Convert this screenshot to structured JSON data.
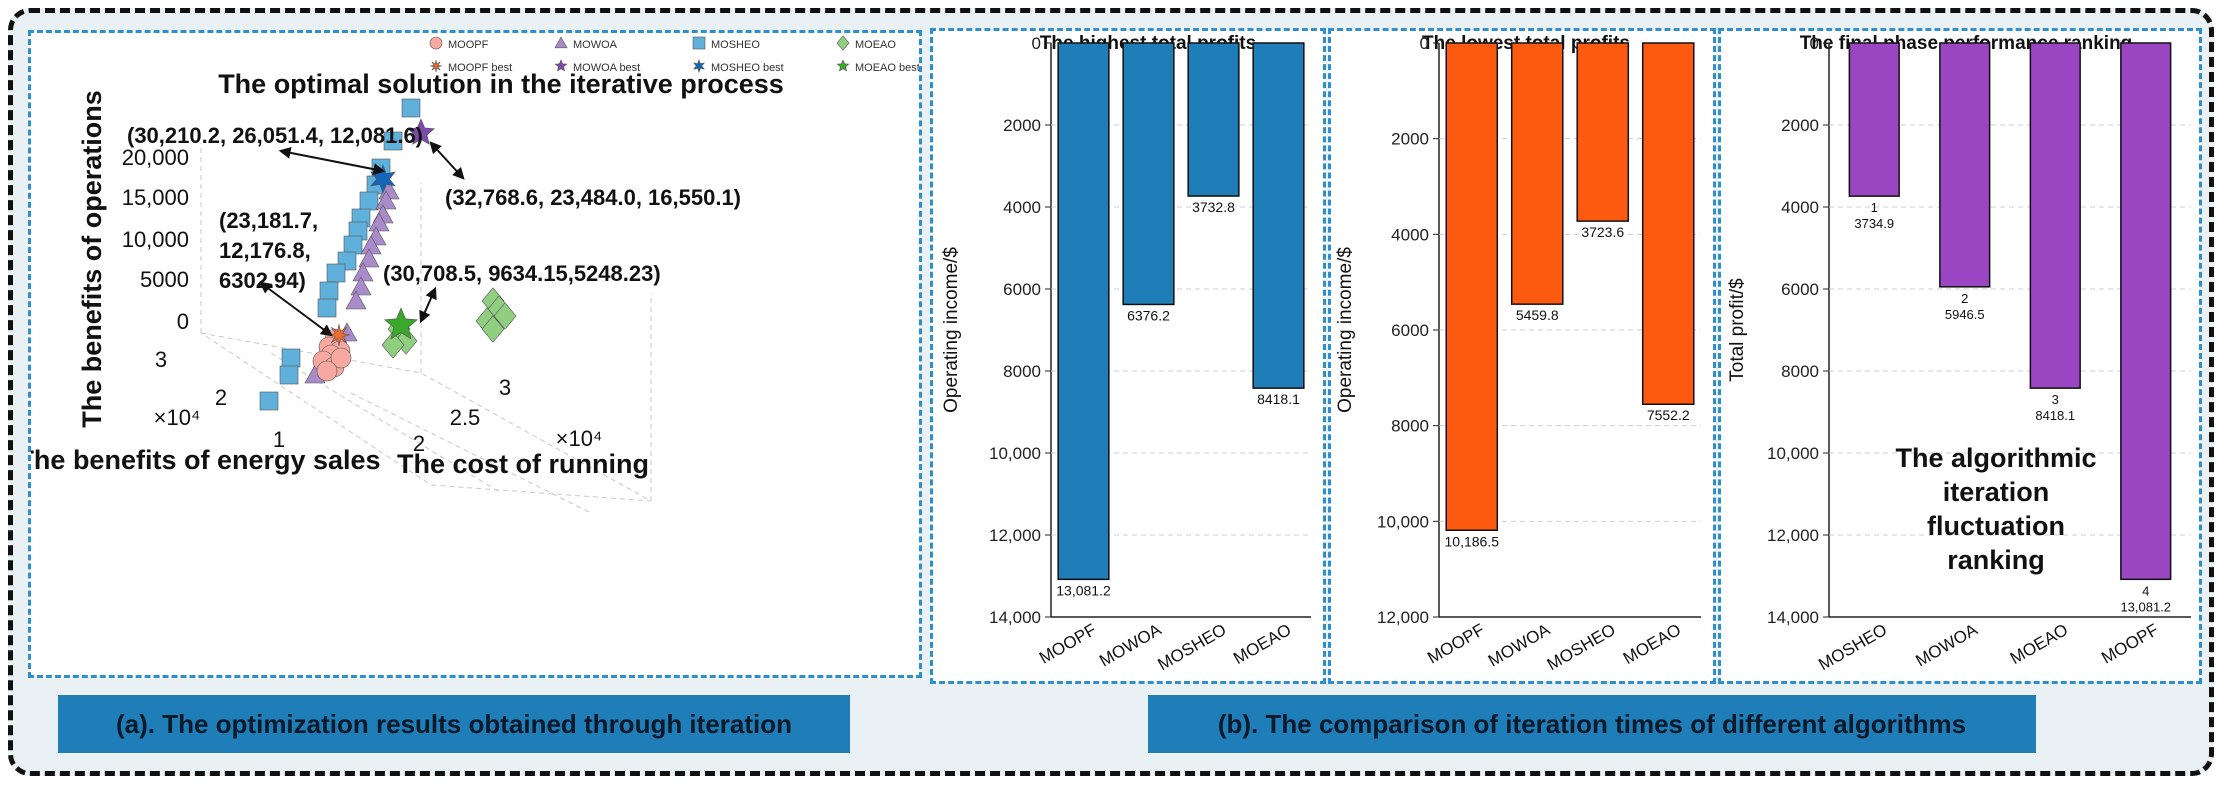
{
  "captions": {
    "a": "(a). The optimization results obtained through iteration",
    "b": "(b). The comparison of iteration times of different algorithms"
  },
  "colors": {
    "MOOPF": "#f7a8a0",
    "MOOPF_best": "#f26a2e",
    "MOWOA": "#a98bc9",
    "MOWOA_best": "#7b4ba8",
    "MOSHEO": "#5fb0da",
    "MOSHEO_best": "#1565b8",
    "MOEAO": "#8fcf7f",
    "MOEAO_best": "#3aa82a",
    "bar_highest": "#1f7db8",
    "bar_lowest": "#fb5a10",
    "bar_ranking": "#9a45c2"
  },
  "chart_data": [
    {
      "type": "scatter",
      "title": "The optimal solution in the iterative process",
      "zlabel": "The benefits of operations",
      "ylabel": "The benefits of energy sales",
      "xlabel": "The cost of running",
      "z_ticks": [
        "0",
        "5000",
        "10,000",
        "15,000",
        "20,000"
      ],
      "y_ticks": [
        "1",
        "2",
        "3"
      ],
      "y_multiplier": "×10⁴",
      "x_ticks": [
        "2",
        "2.5",
        "3"
      ],
      "x_multiplier": "×10⁴",
      "legend": [
        {
          "name": "MOOPF",
          "marker": "circle",
          "color_key": "MOOPF"
        },
        {
          "name": "MOWOA",
          "marker": "triangle",
          "color_key": "MOWOA"
        },
        {
          "name": "MOSHEO",
          "marker": "square",
          "color_key": "MOSHEO"
        },
        {
          "name": "MOEAO",
          "marker": "diamond",
          "color_key": "MOEAO"
        },
        {
          "name": "MOOPF best",
          "marker": "asterisk",
          "color_key": "MOOPF_best"
        },
        {
          "name": "MOWOA best",
          "marker": "star5",
          "color_key": "MOWOA_best"
        },
        {
          "name": "MOSHEO best",
          "marker": "star6",
          "color_key": "MOSHEO_best"
        },
        {
          "name": "MOEAO best",
          "marker": "star5",
          "color_key": "MOEAO_best"
        }
      ],
      "best_solutions": [
        {
          "series": "MOSHEO",
          "cost": 30210.2,
          "energy_sales": 26051.4,
          "operations": 12081.6,
          "label_lines": [
            "(30,210.2, 26,051.4, 12,081.6)"
          ]
        },
        {
          "series": "MOWOA",
          "cost": 32768.6,
          "energy_sales": 23484.0,
          "operations": 16550.1,
          "label_lines": [
            "(32,768.6, 23,484.0, 16,550.1)"
          ]
        },
        {
          "series": "MOOPF",
          "cost": 23181.7,
          "energy_sales": 12176.8,
          "operations": 6302.94,
          "label_lines": [
            "(23,181.7,",
            "12,176.8,",
            "6302.94)"
          ]
        },
        {
          "series": "MOEAO",
          "cost": 30708.5,
          "energy_sales": 9634.15,
          "operations": 5248.23,
          "label_lines": [
            "(30,708.5, 9634.15,5248.23)"
          ]
        }
      ]
    },
    {
      "type": "bar",
      "title": "The highest total profits",
      "ylabel": "Operating income/$",
      "y_inverted": true,
      "ylim": [
        0,
        14000
      ],
      "y_ticks": [
        0,
        2000,
        4000,
        6000,
        8000,
        10000,
        12000,
        14000
      ],
      "y_tick_labels": [
        "0",
        "2000",
        "4000",
        "6000",
        "8000",
        "10,000",
        "12,000",
        "14,000"
      ],
      "categories": [
        "MOOPF",
        "MOWOA",
        "MOSHEO",
        "MOEAO"
      ],
      "values": [
        13081.2,
        6376.2,
        3732.8,
        8418.1
      ],
      "value_labels": [
        "13,081.2",
        "6376.2",
        "3732.8",
        "8418.1"
      ],
      "color_key": "bar_highest"
    },
    {
      "type": "bar",
      "title": "The lowest total profits",
      "ylabel": "Operating income/$",
      "y_inverted": true,
      "ylim": [
        0,
        12000
      ],
      "y_ticks": [
        0,
        2000,
        4000,
        6000,
        8000,
        10000,
        12000
      ],
      "y_tick_labels": [
        "0",
        "2000",
        "4000",
        "6000",
        "8000",
        "10,000",
        "12,000"
      ],
      "categories": [
        "MOOPF",
        "MOWOA",
        "MOSHEO",
        "MOEAO"
      ],
      "values": [
        10186.5,
        5459.8,
        3723.6,
        7552.2
      ],
      "value_labels": [
        "10,186.5",
        "5459.8",
        "3723.6",
        "7552.2"
      ],
      "color_key": "bar_lowest"
    },
    {
      "type": "bar",
      "title": "The final phase performance ranking",
      "ylabel": "Total profit/$",
      "y_inverted": true,
      "ylim": [
        0,
        14000
      ],
      "y_ticks": [
        0,
        2000,
        4000,
        6000,
        8000,
        10000,
        12000,
        14000
      ],
      "y_tick_labels": [
        "0",
        "2000",
        "4000",
        "6000",
        "8000",
        "10,000",
        "12,000",
        "14,000"
      ],
      "categories": [
        "MOSHEO",
        "MOWOA",
        "MOEAO",
        "MOOPF"
      ],
      "values": [
        3734.9,
        5946.5,
        8418.1,
        13081.2
      ],
      "ranks": [
        "1",
        "2",
        "3",
        "4"
      ],
      "value_labels": [
        "3734.9",
        "5946.5",
        "8418.1",
        "13,081.2"
      ],
      "annotation_lines": [
        "The algorithmic",
        "iteration",
        "fluctuation",
        "ranking"
      ],
      "color_key": "bar_ranking"
    }
  ]
}
